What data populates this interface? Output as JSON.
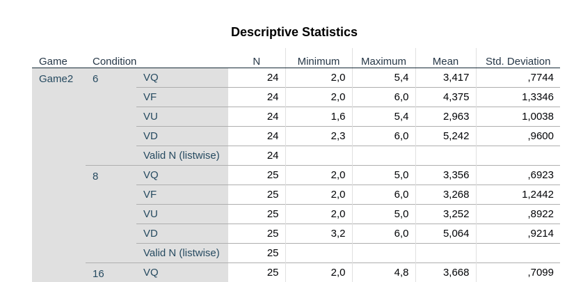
{
  "title": "Descriptive Statistics",
  "headers": {
    "game": "Game",
    "condition": "Condition",
    "n": "N",
    "minimum": "Minimum",
    "maximum": "Maximum",
    "mean": "Mean",
    "std": "Std. Deviation"
  },
  "game_label": "Game2",
  "groups": [
    {
      "condition": "6",
      "rows": [
        {
          "label": "VQ",
          "n": "24",
          "min": "2,0",
          "max": "5,4",
          "mean": "3,417",
          "std": ",7744"
        },
        {
          "label": "VF",
          "n": "24",
          "min": "2,0",
          "max": "6,0",
          "mean": "4,375",
          "std": "1,3346"
        },
        {
          "label": "VU",
          "n": "24",
          "min": "1,6",
          "max": "5,4",
          "mean": "2,963",
          "std": "1,0038"
        },
        {
          "label": "VD",
          "n": "24",
          "min": "2,3",
          "max": "6,0",
          "mean": "5,242",
          "std": ",9600"
        },
        {
          "label": "Valid N (listwise)",
          "n": "24",
          "min": "",
          "max": "",
          "mean": "",
          "std": ""
        }
      ]
    },
    {
      "condition": "8",
      "rows": [
        {
          "label": "VQ",
          "n": "25",
          "min": "2,0",
          "max": "5,0",
          "mean": "3,356",
          "std": ",6923"
        },
        {
          "label": "VF",
          "n": "25",
          "min": "2,0",
          "max": "6,0",
          "mean": "3,268",
          "std": "1,2442"
        },
        {
          "label": "VU",
          "n": "25",
          "min": "2,0",
          "max": "5,0",
          "mean": "3,252",
          "std": ",8922"
        },
        {
          "label": "VD",
          "n": "25",
          "min": "3,2",
          "max": "6,0",
          "mean": "5,064",
          "std": ",9214"
        },
        {
          "label": "Valid N (listwise)",
          "n": "25",
          "min": "",
          "max": "",
          "mean": "",
          "std": ""
        }
      ]
    },
    {
      "condition": "16",
      "rows": [
        {
          "label": "VQ",
          "n": "25",
          "min": "2,0",
          "max": "4,8",
          "mean": "3,668",
          "std": ",7099"
        }
      ]
    }
  ]
}
